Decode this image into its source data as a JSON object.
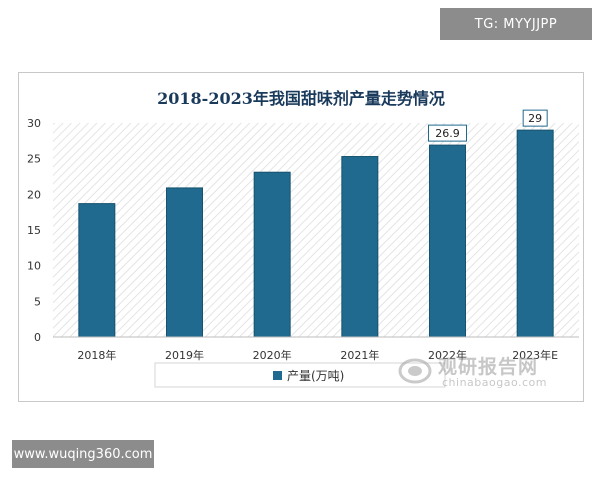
{
  "badges": {
    "tg": "TG: MYYJJPP",
    "url": "www.wuqing360.com"
  },
  "watermark": {
    "cn": "观研报告网",
    "en": "chinabaogao.com"
  },
  "chart_data": {
    "type": "bar",
    "title": "2018-2023年我国甜味剂产量走势情况",
    "categories": [
      "2018年",
      "2019年",
      "2020年",
      "2021年",
      "2022年",
      "2023年E"
    ],
    "series": [
      {
        "name": "产量(万吨)",
        "values": [
          18.7,
          20.9,
          23.1,
          25.3,
          26.9,
          29
        ]
      }
    ],
    "data_labels": [
      null,
      null,
      null,
      null,
      "26.9",
      "29"
    ],
    "ylim": [
      0,
      30
    ],
    "yticks": [
      0,
      5,
      10,
      15,
      20,
      25,
      30
    ],
    "xlabel": "",
    "ylabel": "",
    "grid": false,
    "legend_position": "bottom",
    "colors": {
      "bar": "#1f6a8e",
      "bar_edge": "#17536f",
      "hatch": "#e6e6e6",
      "label_border": "#1f6a8e"
    }
  }
}
